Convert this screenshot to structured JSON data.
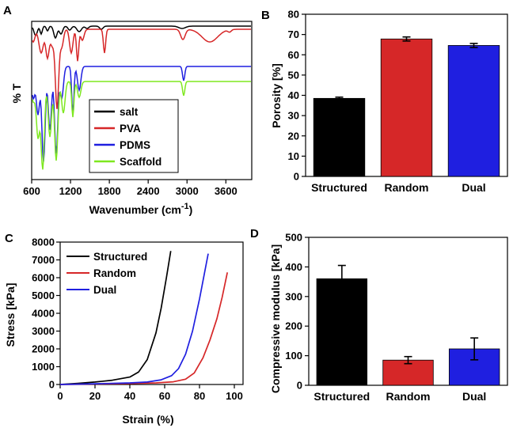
{
  "chart_data": [
    {
      "panel": "A",
      "type": "line",
      "xlabel": "Wavenumber (cm",
      "xlabel_sup": "-1",
      "xlabel_close": ")",
      "ylabel": "% T",
      "xlim": [
        600,
        4000
      ],
      "xticks": [
        600,
        1200,
        1800,
        2400,
        3000,
        3600
      ],
      "legend_position": "bottom-center",
      "series": [
        {
          "name": "salt",
          "color": "#000000"
        },
        {
          "name": "PVA",
          "color": "#d62728"
        },
        {
          "name": "PDMS",
          "color": "#1f1fe0"
        },
        {
          "name": "Scaffold",
          "color": "#7ee81f"
        }
      ]
    },
    {
      "panel": "B",
      "type": "bar",
      "ylabel": "Porosity [%]",
      "ylim": [
        0,
        80
      ],
      "yticks": [
        0,
        10,
        20,
        30,
        40,
        50,
        60,
        70,
        80
      ],
      "categories": [
        "Structured",
        "Random",
        "Dual"
      ],
      "values": [
        38.5,
        67.8,
        64.6
      ],
      "errors": [
        0.6,
        1.0,
        1.0
      ],
      "colors": [
        "#000000",
        "#d62728",
        "#1f1fe0"
      ]
    },
    {
      "panel": "C",
      "type": "line",
      "xlabel": "Strain (%)",
      "ylabel": "Stress [kPa]",
      "xlim": [
        0,
        105
      ],
      "ylim": [
        0,
        8000
      ],
      "xticks": [
        0,
        20,
        40,
        60,
        80,
        100
      ],
      "yticks": [
        0,
        1000,
        2000,
        3000,
        4000,
        5000,
        6000,
        7000,
        8000
      ],
      "legend_position": "top-left",
      "series": [
        {
          "name": "Structured",
          "color": "#000000",
          "x": [
            0,
            10,
            20,
            30,
            40,
            45,
            50,
            55,
            58,
            61,
            63.5
          ],
          "y": [
            0,
            60,
            140,
            240,
            420,
            700,
            1400,
            2900,
            4300,
            6000,
            7500
          ]
        },
        {
          "name": "Random",
          "color": "#d62728",
          "x": [
            0,
            20,
            40,
            55,
            65,
            72,
            77,
            82,
            86,
            90,
            93,
            96
          ],
          "y": [
            0,
            25,
            55,
            90,
            150,
            300,
            650,
            1500,
            2500,
            3700,
            4900,
            6300
          ]
        },
        {
          "name": "Dual",
          "color": "#1f1fe0",
          "x": [
            0,
            20,
            40,
            50,
            58,
            64,
            68,
            72,
            76,
            80,
            85
          ],
          "y": [
            0,
            40,
            90,
            140,
            260,
            500,
            900,
            1700,
            3000,
            4800,
            7350
          ]
        }
      ]
    },
    {
      "panel": "D",
      "type": "bar",
      "ylabel": "Compressive modulus [kPa]",
      "ylim": [
        0,
        500
      ],
      "yticks": [
        0,
        100,
        200,
        300,
        400,
        500
      ],
      "categories": [
        "Structured",
        "Random",
        "Dual"
      ],
      "values": [
        360,
        85,
        123
      ],
      "errors": [
        45,
        12,
        37
      ],
      "colors": [
        "#000000",
        "#d62728",
        "#1f1fe0"
      ]
    }
  ]
}
